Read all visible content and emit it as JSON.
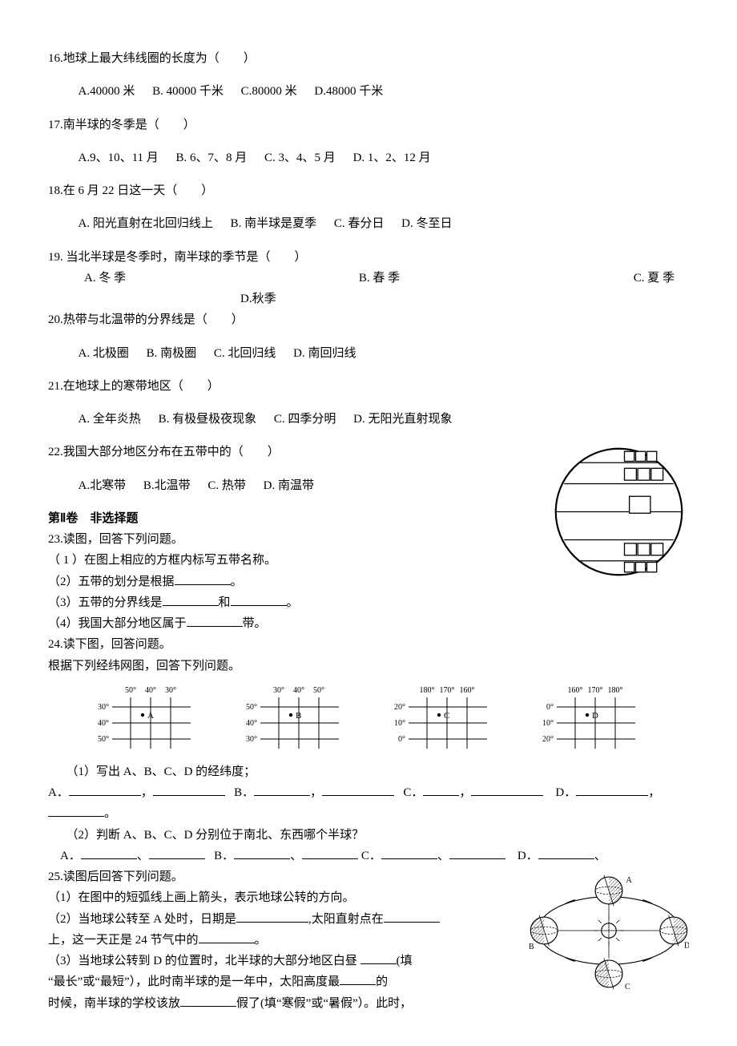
{
  "q16": {
    "stem": "16.地球上最大纬线圈的长度为（　　）",
    "A": "A.40000 米",
    "B": "B. 40000 千米",
    "C": "C.80000 米",
    "D": "D.48000 千米"
  },
  "q17": {
    "stem": "17.南半球的冬季是（　　）",
    "A": "A.9、10、11 月",
    "B": "B. 6、7、8 月",
    "C": "C. 3、4、5 月",
    "D": "D. 1、2、12 月"
  },
  "q18": {
    "stem": "18.在 6 月 22 日这一天（　　）",
    "A": "A. 阳光直射在北回归线上",
    "B": "B. 南半球是夏季",
    "C": "C. 春分日",
    "D": "D. 冬至日"
  },
  "q19": {
    "stem": "19. 当北半球是冬季时，南半球的季节是（　　）",
    "A": "A. 冬 季",
    "B": "B. 春 季",
    "C": "C. 夏 季",
    "D": "D.秋季"
  },
  "q20": {
    "stem": "20.热带与北温带的分界线是（　　）",
    "A": "A. 北极圈",
    "B": "B. 南极圈",
    "C": "C. 北回归线",
    "D": "D. 南回归线"
  },
  "q21": {
    "stem": "21.在地球上的寒带地区（　　）",
    "A": "A. 全年炎热",
    "B": "B. 有极昼极夜现象",
    "C": "C. 四季分明",
    "D": "D. 无阳光直射现象"
  },
  "q22": {
    "stem": "22.我国大部分地区分布在五带中的（　　）",
    "A": "A.北寒带",
    "B": "B.北温带",
    "C": "C. 热带",
    "D": "D. 南温带"
  },
  "section2": "第Ⅱ卷　非选择题",
  "q23": {
    "stem": "23.读图，回答下列问题。",
    "p1": "（ 1 ）在图上相应的方框内标写五带名称。",
    "p2a": "（2）五带的划分是根据",
    "p2b": "。",
    "p3a": "（3）五带的分界线是",
    "p3b": "和",
    "p3c": "。",
    "p4a": "（4）我国大部分地区属于",
    "p4b": "带。"
  },
  "q24": {
    "stem": "24.读下图，回答问题。",
    "sub": "根据下列经纬网图，回答下列问题。",
    "grids": [
      {
        "top": [
          "50°",
          "40°",
          "30°"
        ],
        "left": [
          "30°",
          "40°",
          "50°"
        ],
        "pt": "A",
        "dotCol": 1
      },
      {
        "top": [
          "30°",
          "40°",
          "50°"
        ],
        "left": [
          "50°",
          "40°",
          "30°"
        ],
        "pt": "B",
        "dotCol": 1
      },
      {
        "top": [
          "180°",
          "170°",
          "160°"
        ],
        "left": [
          "20°",
          "10°",
          "0°"
        ],
        "pt": "C",
        "dotCol": 1
      },
      {
        "top": [
          "160°",
          "170°",
          "180°"
        ],
        "left": [
          "0°",
          "10°",
          "20°"
        ],
        "pt": "D",
        "dotCol": 1
      }
    ],
    "p1": "（1）写出 A、B、C、D 的经纬度；",
    "p1A": "A．",
    "p1B": "B．",
    "p1C": "C．",
    "p1D": "D．",
    "comma": "，",
    "period": "。",
    "p2": "（2）判断 A、B、C、D 分别位于南北、东西哪个半球？",
    "p2A": "A．",
    "p2B": "B．",
    "p2C": "C．",
    "p2D": "D．",
    "sep": "、"
  },
  "q25": {
    "stem": "25.读图后回答下列问题。",
    "p1": "（1）在图中的短弧线上画上箭头，表示地球公转的方向。",
    "p2a": "（2）当地球公转至 A 处时，日期是",
    "p2b": ",太阳直射点在",
    "p2c": "上，这一天正是 24 节气中的",
    "p2d": "。",
    "p3a": "（3）当地球公转到 D 的位置时，北半球的大部分地区白昼 ",
    "p3b": "(填",
    "p3c": "“最长”或“最短”），此时南半球的是一年中，太阳高度最",
    "p3d": "的",
    "p3e": "时候，南半球的学校该放",
    "p3f": "假了(填“寒假”或“暑假”）。此时，"
  },
  "fig23": {
    "circle_stroke": "#000000",
    "box_stroke": "#000000",
    "bg": "#ffffff"
  },
  "fig25": {
    "labels": {
      "A": "A",
      "B": "B",
      "C": "C",
      "D": "D"
    }
  }
}
